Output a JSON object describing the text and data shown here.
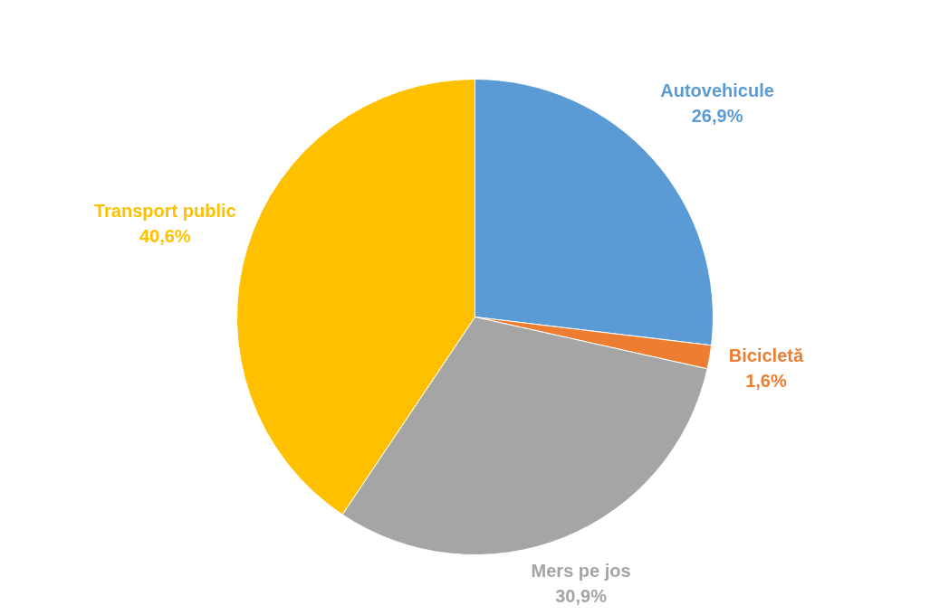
{
  "chart_data": {
    "type": "pie",
    "categories": [
      "Autovehicule",
      "Bicicletă",
      "Mers pe jos",
      "Transport public"
    ],
    "values": [
      26.9,
      1.6,
      30.9,
      40.6
    ],
    "colors": [
      "#5b9bd5",
      "#ed7d31",
      "#a5a5a5",
      "#ffc000"
    ],
    "value_labels": [
      "26,9%",
      "1,6%",
      "30,9%",
      "40,6%"
    ]
  }
}
